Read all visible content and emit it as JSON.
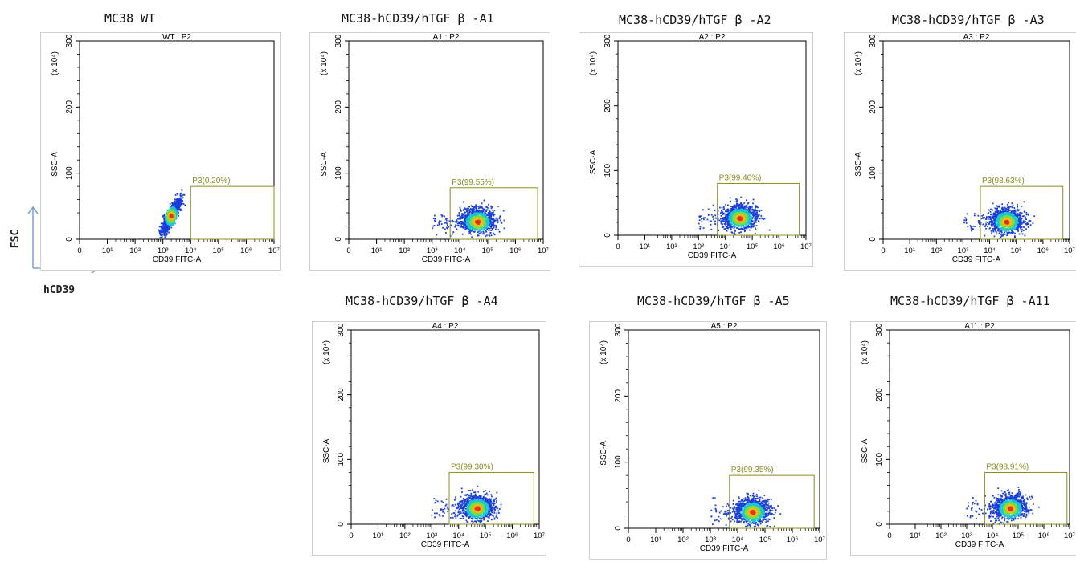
{
  "legend": {
    "y_label": "FSC",
    "x_label": "hCD39"
  },
  "colors": {
    "gate": "#8c8c1e",
    "arrow": "#7aa0d8",
    "axis": "#000000"
  },
  "chart_data": [
    {
      "type": "scatter",
      "title": "MC38 WT",
      "subtitle": "WT : P2",
      "xlabel": "CD39 FITC-A",
      "ylabel": "SSC-A",
      "y_multiplier": "(x 10⁴)",
      "x_ticks": [
        "0",
        "10¹",
        "10²",
        "10³",
        "10⁴",
        "10⁵",
        "10⁶",
        "10⁷"
      ],
      "y_ticks": [
        "0",
        "100",
        "200",
        "300"
      ],
      "ylim": [
        0,
        300
      ],
      "gate": {
        "label": "P3(0.20%)",
        "x_range": [
          4.0,
          7.0
        ],
        "y_range": [
          0,
          80
        ]
      },
      "population": {
        "center_log_x": 3.3,
        "center_y": 35
      }
    },
    {
      "type": "scatter",
      "title": "MC38-hCD39/hTGF β -A1",
      "subtitle": "A1 : P2",
      "xlabel": "CD39 FITC-A",
      "ylabel": "SSC-A",
      "y_multiplier": "(x 10⁴)",
      "x_ticks": [
        "0",
        "10¹",
        "10²",
        "10³",
        "10⁴",
        "10⁵",
        "10⁶",
        "10⁷"
      ],
      "y_ticks": [
        "0",
        "100",
        "200",
        "300"
      ],
      "ylim": [
        0,
        300
      ],
      "gate": {
        "label": "P3(99.55%)",
        "x_range": [
          3.65,
          6.8
        ],
        "y_range": [
          0,
          78
        ]
      },
      "population": {
        "center_log_x": 4.65,
        "center_y": 26
      }
    },
    {
      "type": "scatter",
      "title": "MC38-hCD39/hTGF β -A2",
      "subtitle": "A2 : P2",
      "xlabel": "CD39 FITC-A",
      "ylabel": "SSC-A",
      "y_multiplier": "(x 10⁴)",
      "x_ticks": [
        "0",
        "10¹",
        "10²",
        "10³",
        "10⁴",
        "10⁵",
        "10⁶",
        "10⁷"
      ],
      "y_ticks": [
        "0",
        "100",
        "200",
        "300"
      ],
      "ylim": [
        0,
        300
      ],
      "gate": {
        "label": "P3(99.40%)",
        "x_range": [
          3.7,
          6.75
        ],
        "y_range": [
          0,
          80
        ]
      },
      "population": {
        "center_log_x": 4.55,
        "center_y": 26
      }
    },
    {
      "type": "scatter",
      "title": "MC38-hCD39/hTGF β  -A3",
      "subtitle": "A3 : P2",
      "xlabel": "CD39 FITC-A",
      "ylabel": "SSC-A",
      "y_multiplier": "(x 10⁴)",
      "x_ticks": [
        "0",
        "10¹",
        "10²",
        "10³",
        "10⁴",
        "10⁵",
        "10⁶",
        "10⁷"
      ],
      "y_ticks": [
        "0",
        "100",
        "200",
        "300"
      ],
      "ylim": [
        0,
        300
      ],
      "gate": {
        "label": "P3(98.63%)",
        "x_range": [
          3.65,
          6.75
        ],
        "y_range": [
          0,
          80
        ]
      },
      "population": {
        "center_log_x": 4.65,
        "center_y": 26
      }
    },
    {
      "type": "scatter",
      "title": "MC38-hCD39/hTGF β  -A4",
      "subtitle": "A4 : P2",
      "xlabel": "CD39 FITC-A",
      "ylabel": "SSC-A",
      "y_multiplier": "(x 10⁴)",
      "x_ticks": [
        "0",
        "10¹",
        "10²",
        "10³",
        "10⁴",
        "10⁵",
        "10⁶",
        "10⁷"
      ],
      "y_ticks": [
        "0",
        "100",
        "200",
        "300"
      ],
      "ylim": [
        0,
        300
      ],
      "gate": {
        "label": "P3(99.30%)",
        "x_range": [
          3.65,
          6.8
        ],
        "y_range": [
          0,
          80
        ]
      },
      "population": {
        "center_log_x": 4.7,
        "center_y": 24
      }
    },
    {
      "type": "scatter",
      "title": "MC38-hCD39/hTGF β  -A5",
      "subtitle": "A5 : P2",
      "xlabel": "CD39 FITC-A",
      "ylabel": "SSC-A",
      "y_multiplier": "(x 10⁴)",
      "x_ticks": [
        "0",
        "10¹",
        "10²",
        "10³",
        "10⁴",
        "10⁵",
        "10⁶",
        "10⁷"
      ],
      "y_ticks": [
        "0",
        "100",
        "200",
        "300"
      ],
      "ylim": [
        0,
        300
      ],
      "gate": {
        "label": "P3(99.35%)",
        "x_range": [
          3.7,
          6.8
        ],
        "y_range": [
          0,
          80
        ]
      },
      "population": {
        "center_log_x": 4.55,
        "center_y": 24
      }
    },
    {
      "type": "scatter",
      "title": "MC38-hCD39/hTGF β -A11",
      "subtitle": "A11 : P2",
      "xlabel": "CD39 FITC-A",
      "ylabel": "SSC-A",
      "y_multiplier": "(x 10⁴)",
      "x_ticks": [
        "0",
        "10¹",
        "10²",
        "10³",
        "10⁴",
        "10⁵",
        "10⁶",
        "10⁷"
      ],
      "y_ticks": [
        "0",
        "100",
        "200",
        "300"
      ],
      "ylim": [
        0,
        300
      ],
      "gate": {
        "label": "P3(98.91%)",
        "x_range": [
          3.7,
          6.9
        ],
        "y_range": [
          0,
          80
        ]
      },
      "population": {
        "center_log_x": 4.7,
        "center_y": 24
      }
    }
  ]
}
